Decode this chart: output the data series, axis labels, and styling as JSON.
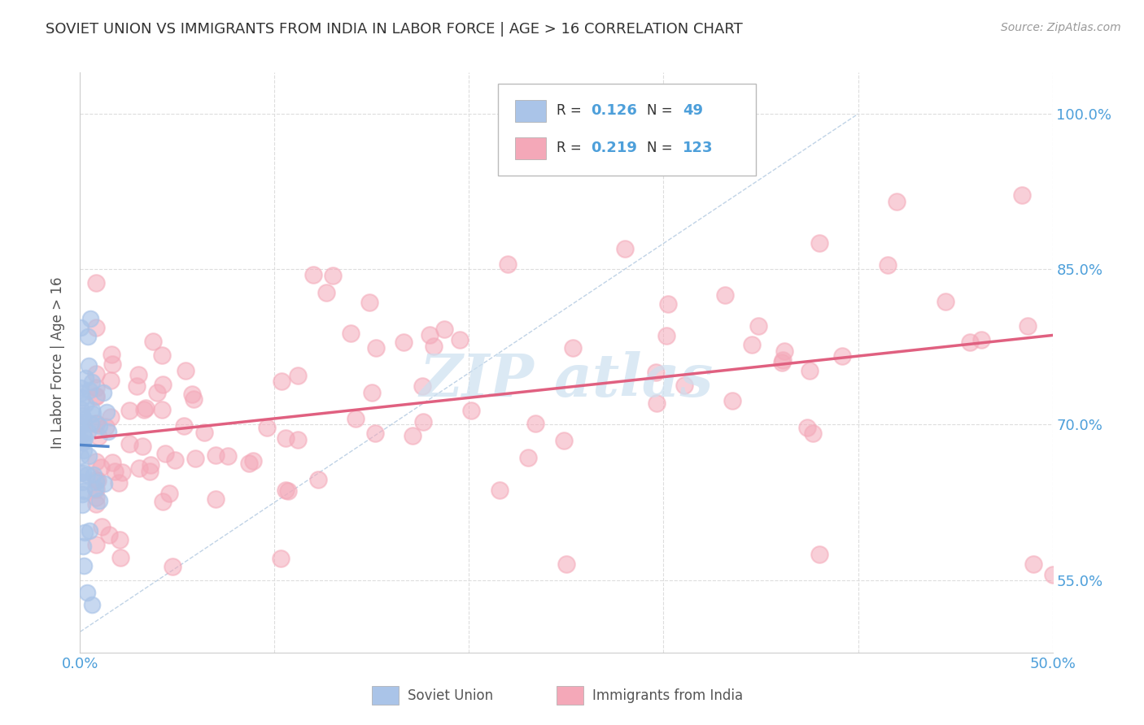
{
  "title": "SOVIET UNION VS IMMIGRANTS FROM INDIA IN LABOR FORCE | AGE > 16 CORRELATION CHART",
  "source": "Source: ZipAtlas.com",
  "ylabel": "In Labor Force | Age > 16",
  "x_min": 0.0,
  "x_max": 0.5,
  "y_min": 0.48,
  "y_max": 1.04,
  "background_color": "#ffffff",
  "grid_color": "#dddddd",
  "title_color": "#333333",
  "axis_color": "#4d9fda",
  "soviet_color": "#aac4e8",
  "india_color": "#f4a8b8",
  "soviet_trend_color": "#5588cc",
  "india_trend_color": "#e06080",
  "diagonal_color": "#b0c8e0",
  "watermark_color": "#cce0f0",
  "legend_R1": "0.126",
  "legend_N1": "49",
  "legend_R2": "0.219",
  "legend_N2": "123",
  "label1": "Soviet Union",
  "label2": "Immigrants from India"
}
